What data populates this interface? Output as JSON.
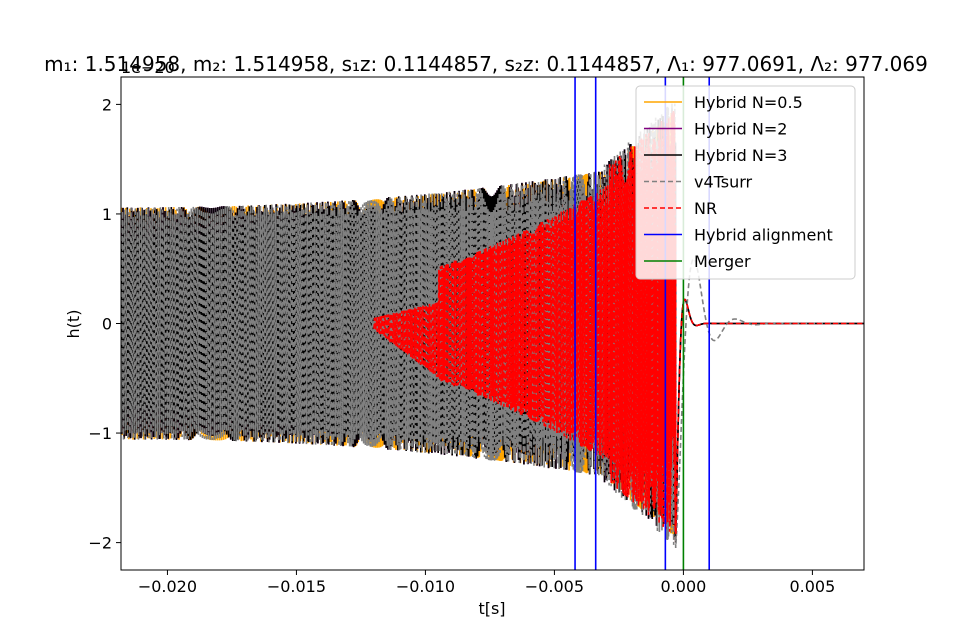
{
  "chart_data": {
    "type": "line",
    "title": "m₁: 1.514958, m₂: 1.514958, s₁z: 0.1144857, s₂z: 0.1144857, Λ₁: 977.0691, Λ₂: 977.069",
    "offset_text": "1e−20",
    "xlabel": "t[s]",
    "ylabel": "h(t)",
    "xlim": [
      -0.0218,
      0.007
    ],
    "ylim": [
      -2.25,
      2.25
    ],
    "y_scale_exponent": -20,
    "x_ticks": [
      -0.02,
      -0.015,
      -0.01,
      -0.005,
      0.0,
      0.005
    ],
    "x_tick_labels": [
      "−0.020",
      "−0.015",
      "−0.010",
      "−0.005",
      "0.000",
      "0.005"
    ],
    "y_ticks": [
      -2,
      -1,
      0,
      1,
      2
    ],
    "y_tick_labels": [
      "−2",
      "−1",
      "0",
      "1",
      "2"
    ],
    "grid": false,
    "legend_placement": "upper-right",
    "series": [
      {
        "name": "Hybrid N=0.5",
        "color": "#ffa500",
        "style": "solid",
        "phase_shift": -0.00012,
        "amp_start": 1.06,
        "amp_peak": 2.0,
        "x_start": -0.0218,
        "x_end": 0.007,
        "post_merger": "damped"
      },
      {
        "name": "Hybrid N=2",
        "color": "#800080",
        "style": "solid",
        "phase_shift": 6e-05,
        "amp_start": 1.06,
        "amp_peak": 2.0,
        "x_start": -0.0218,
        "x_end": 0.007,
        "post_merger": "damped"
      },
      {
        "name": "Hybrid N=3",
        "color": "#000000",
        "style": "solid",
        "phase_shift": 6e-05,
        "amp_start": 1.06,
        "amp_peak": 2.0,
        "x_start": -0.0218,
        "x_end": 0.007,
        "post_merger": "damped"
      },
      {
        "name": "v4Tsurr",
        "color": "#808080",
        "style": "dashed",
        "phase_shift": 8e-05,
        "amp_start": 1.06,
        "amp_peak": 2.05,
        "x_start": -0.0218,
        "x_end": 0.007,
        "post_merger": "ringing"
      },
      {
        "name": "NR",
        "color": "#ff0000",
        "style": "dashed",
        "phase_shift": -0.00012,
        "amp_start": 0.05,
        "amp_peak": 2.0,
        "x_start": -0.012,
        "x_end": 0.007,
        "post_merger": "damped"
      }
    ],
    "vlines": [
      {
        "name": "Hybrid alignment",
        "color": "#0000ff",
        "x": -0.0042
      },
      {
        "name": "Hybrid alignment",
        "color": "#0000ff",
        "x": -0.0034
      },
      {
        "name": "Hybrid alignment",
        "color": "#0000ff",
        "x": -0.0007
      },
      {
        "name": "Hybrid alignment",
        "color": "#0000ff",
        "x": 0.001
      },
      {
        "name": "Merger",
        "color": "#008000",
        "x": 0.0
      }
    ],
    "legend": [
      {
        "label": "Hybrid N=0.5",
        "color": "#ffa500",
        "style": "solid"
      },
      {
        "label": "Hybrid N=2",
        "color": "#800080",
        "style": "solid"
      },
      {
        "label": "Hybrid N=3",
        "color": "#000000",
        "style": "solid"
      },
      {
        "label": "v4Tsurr",
        "color": "#808080",
        "style": "dashed"
      },
      {
        "label": "NR",
        "color": "#ff0000",
        "style": "dashed"
      },
      {
        "label": "Hybrid alignment",
        "color": "#0000ff",
        "style": "solid"
      },
      {
        "label": "Merger",
        "color": "#008000",
        "style": "solid"
      }
    ]
  }
}
